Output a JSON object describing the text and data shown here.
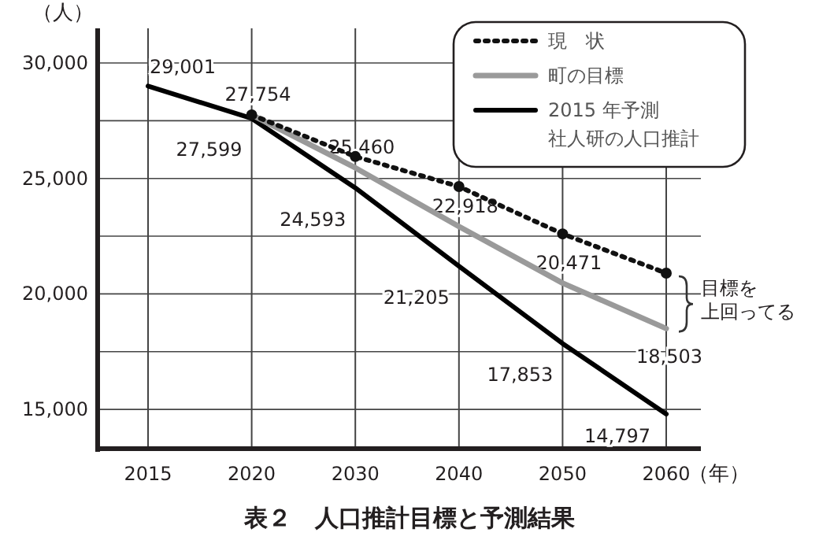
{
  "chart_data": {
    "type": "line",
    "title": "表２　人口推計目標と予測結果",
    "ylabel": "（人）",
    "xlabel": "（年）",
    "categories": [
      "2015",
      "2020",
      "2030",
      "2040",
      "2050",
      "2060"
    ],
    "ylim": [
      13300,
      31500
    ],
    "yticks": [
      {
        "value": 30000,
        "label": "30,000"
      },
      {
        "value": 27500,
        "label": null
      },
      {
        "value": 25000,
        "label": "25,000"
      },
      {
        "value": 22500,
        "label": null
      },
      {
        "value": 20000,
        "label": "20,000"
      },
      {
        "value": 17500,
        "label": null
      },
      {
        "value": 15000,
        "label": "15,000"
      }
    ],
    "grid": true,
    "legend": "top right",
    "series": [
      {
        "name": "現　状",
        "color": "#111111",
        "line_style": "dotted",
        "marker": "circle",
        "values": [
          null,
          27754,
          25950,
          24650,
          22600,
          20900
        ],
        "value_labels": [
          null,
          null,
          null,
          null,
          null,
          null
        ]
      },
      {
        "name": "町の目標",
        "color": "#9a9a9a",
        "line_style": "solid",
        "values": [
          null,
          27754,
          25460,
          22918,
          20471,
          18503
        ],
        "value_labels": [
          null,
          "27,754",
          "25,460",
          "22,918",
          "20,471",
          "18,503"
        ]
      },
      {
        "name": "2015 年予測社人研の人口推計",
        "color": "#000000",
        "line_style": "solid",
        "values": [
          29001,
          27599,
          24593,
          21205,
          17853,
          14797
        ],
        "value_labels": [
          "29,001",
          "27,599",
          "24,593",
          "21,205",
          "17,853",
          "14,797"
        ]
      }
    ],
    "annotations": [
      "目標を",
      "上回ってる"
    ]
  }
}
